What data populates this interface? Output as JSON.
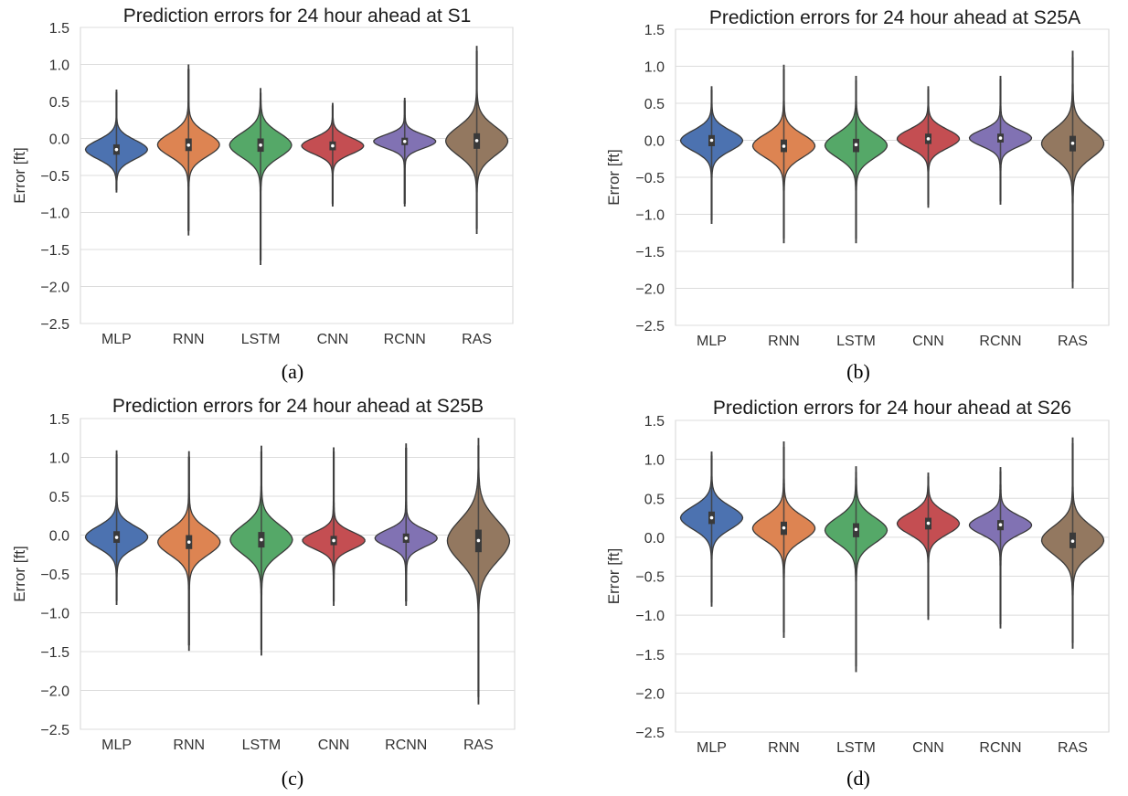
{
  "colors": [
    "#4c72b0",
    "#dd8452",
    "#55a868",
    "#c44e52",
    "#8172b3",
    "#937860"
  ],
  "chart_data": [
    {
      "type": "violin",
      "panel_label": "(a)",
      "title": "Prediction errors for 24 hour ahead at S1",
      "ylabel": "Error [ft]",
      "ylim": [
        -2.5,
        1.5
      ],
      "yticks": [
        "−2.5",
        "−2.0",
        "−1.5",
        "−1.0",
        "−0.5",
        "0.0",
        "0.5",
        "1.0",
        "1.5"
      ],
      "grid": true,
      "categories": [
        "MLP",
        "RNN",
        "LSTM",
        "CNN",
        "RCNN",
        "RAS"
      ],
      "series": [
        {
          "min": -0.73,
          "max": 0.66,
          "q1": -0.22,
          "median": -0.15,
          "q3": -0.08
        },
        {
          "min": -1.31,
          "max": 1.0,
          "q1": -0.17,
          "median": -0.09,
          "q3": 0.0
        },
        {
          "min": -1.71,
          "max": 0.68,
          "q1": -0.18,
          "median": -0.09,
          "q3": 0.0
        },
        {
          "min": -0.92,
          "max": 0.48,
          "q1": -0.16,
          "median": -0.1,
          "q3": -0.04
        },
        {
          "min": -0.92,
          "max": 0.55,
          "q1": -0.09,
          "median": -0.04,
          "q3": 0.01
        },
        {
          "min": -1.29,
          "max": 1.25,
          "q1": -0.14,
          "median": -0.03,
          "q3": 0.07
        }
      ]
    },
    {
      "type": "violin",
      "panel_label": "(b)",
      "title": "Prediction errors for 24 hour ahead at S25A",
      "ylabel": "Error [ft]",
      "ylim": [
        -2.5,
        1.5
      ],
      "yticks": [
        "−2.5",
        "−2.0",
        "−1.5",
        "−1.0",
        "−0.5",
        "0.0",
        "0.5",
        "1.0",
        "1.5"
      ],
      "grid": true,
      "categories": [
        "MLP",
        "RNN",
        "LSTM",
        "CNN",
        "RCNN",
        "RAS"
      ],
      "series": [
        {
          "min": -1.13,
          "max": 0.73,
          "q1": -0.08,
          "median": 0.0,
          "q3": 0.07
        },
        {
          "min": -1.39,
          "max": 1.02,
          "q1": -0.16,
          "median": -0.08,
          "q3": 0.01
        },
        {
          "min": -1.39,
          "max": 0.87,
          "q1": -0.16,
          "median": -0.06,
          "q3": 0.02
        },
        {
          "min": -0.91,
          "max": 0.73,
          "q1": -0.05,
          "median": 0.02,
          "q3": 0.09
        },
        {
          "min": -0.87,
          "max": 0.87,
          "q1": -0.03,
          "median": 0.03,
          "q3": 0.09
        },
        {
          "min": -2.0,
          "max": 1.21,
          "q1": -0.15,
          "median": -0.04,
          "q3": 0.06
        }
      ]
    },
    {
      "type": "violin",
      "panel_label": "(c)",
      "title": "Prediction errors for 24 hour ahead at S25B",
      "ylabel": "Error [ft]",
      "ylim": [
        -2.5,
        1.5
      ],
      "yticks": [
        "−2.5",
        "−2.0",
        "−1.5",
        "−1.0",
        "−0.5",
        "0.0",
        "0.5",
        "1.0",
        "1.5"
      ],
      "grid": true,
      "categories": [
        "MLP",
        "RNN",
        "LSTM",
        "CNN",
        "RCNN",
        "RAS"
      ],
      "series": [
        {
          "min": -0.9,
          "max": 1.09,
          "q1": -0.1,
          "median": -0.03,
          "q3": 0.05
        },
        {
          "min": -1.49,
          "max": 1.08,
          "q1": -0.18,
          "median": -0.09,
          "q3": 0.0
        },
        {
          "min": -1.55,
          "max": 1.15,
          "q1": -0.16,
          "median": -0.06,
          "q3": 0.04
        },
        {
          "min": -0.91,
          "max": 1.13,
          "q1": -0.13,
          "median": -0.07,
          "q3": -0.01
        },
        {
          "min": -0.91,
          "max": 1.18,
          "q1": -0.1,
          "median": -0.04,
          "q3": 0.02
        },
        {
          "min": -2.18,
          "max": 1.25,
          "q1": -0.22,
          "median": -0.07,
          "q3": 0.07
        }
      ]
    },
    {
      "type": "violin",
      "panel_label": "(d)",
      "title": "Prediction errors for 24 hour ahead at S26",
      "ylabel": "Error [ft]",
      "ylim": [
        -2.5,
        1.5
      ],
      "yticks": [
        "−2.5",
        "−2.0",
        "−1.5",
        "−1.0",
        "−0.5",
        "0.0",
        "0.5",
        "1.0",
        "1.5"
      ],
      "grid": true,
      "categories": [
        "MLP",
        "RNN",
        "LSTM",
        "CNN",
        "RCNN",
        "RAS"
      ],
      "series": [
        {
          "min": -0.89,
          "max": 1.1,
          "q1": 0.17,
          "median": 0.25,
          "q3": 0.33
        },
        {
          "min": -1.29,
          "max": 1.23,
          "q1": 0.03,
          "median": 0.12,
          "q3": 0.2
        },
        {
          "min": -1.73,
          "max": 0.91,
          "q1": 0.0,
          "median": 0.1,
          "q3": 0.18
        },
        {
          "min": -1.06,
          "max": 0.83,
          "q1": 0.1,
          "median": 0.18,
          "q3": 0.25
        },
        {
          "min": -1.17,
          "max": 0.9,
          "q1": 0.09,
          "median": 0.16,
          "q3": 0.22
        },
        {
          "min": -1.43,
          "max": 1.28,
          "q1": -0.14,
          "median": -0.05,
          "q3": 0.06
        }
      ]
    }
  ]
}
